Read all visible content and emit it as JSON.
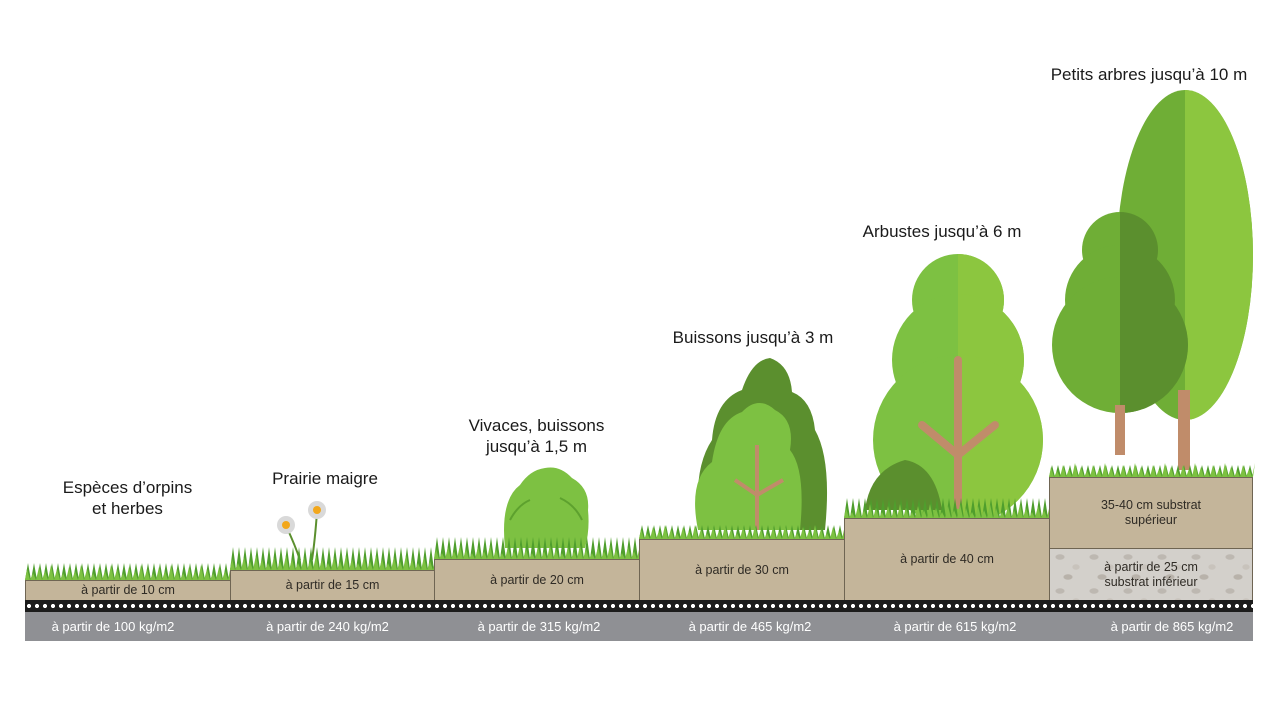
{
  "colors": {
    "grass_dark": "#4f9e2d",
    "grass_light": "#7dc142",
    "foliage_light": "#8cc63f",
    "foliage_mid": "#6fae36",
    "foliage_dark": "#5b8f2e",
    "trunk": "#c08c6a",
    "substrate": "#c4b59a",
    "gravel": "#d3d0cb",
    "membrane": "#1c1c1c",
    "weight_band": "#8f9094",
    "flower_petal": "#d9d9d9",
    "flower_center": "#f2a71b"
  },
  "columns": [
    {
      "title": "Espèces d’orpins\net herbes",
      "depth": "à partir de 10 cm",
      "weight": "à partir de 100 kg/m2",
      "icon": "sedum-grass-icon"
    },
    {
      "title": "Prairie maigre",
      "depth": "à partir de 15 cm",
      "weight": "à partir de 240 kg/m2",
      "icon": "meadow-flower-icon"
    },
    {
      "title": "Vivaces, buissons\njusqu’à 1,5 m",
      "depth": "à partir de 20 cm",
      "weight": "à partir de 315 kg/m2",
      "icon": "perennial-bush-icon"
    },
    {
      "title": "Buissons jusqu’à 3 m",
      "depth": "à partir de 30 cm",
      "weight": "à partir de 465 kg/m2",
      "icon": "shrub-icon"
    },
    {
      "title": "Arbustes jusqu’à 6 m",
      "depth": "à partir de 40 cm",
      "weight": "à partir de 615 kg/m2",
      "icon": "small-tree-icon"
    },
    {
      "title": "Petits arbres jusqu’à 10 m",
      "depth_upper": "35-40 cm substrat\nsupérieur",
      "depth_lower": "à partir de 25 cm\nsubstrat inférieur",
      "weight": "à partir de 865 kg/m2",
      "icon": "tree-icon"
    }
  ]
}
